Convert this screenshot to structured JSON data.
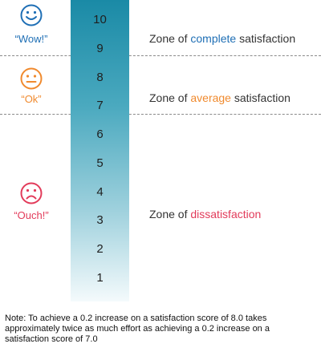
{
  "colors": {
    "complete": "#1f6fb5",
    "average": "#f08a2e",
    "dissatisfaction": "#e23b5a",
    "bar_top": "#1a8aa6",
    "bar_bottom": "#f4fafc"
  },
  "scale": {
    "ticks": [
      "10",
      "9",
      "8",
      "7",
      "6",
      "5",
      "4",
      "3",
      "2",
      "1"
    ]
  },
  "faces": {
    "happy": {
      "icon": "happy-face-icon",
      "label": "“Wow!”"
    },
    "neutral": {
      "icon": "neutral-face-icon",
      "label": "“Ok”"
    },
    "sad": {
      "icon": "sad-face-icon",
      "label": "“Ouch!”"
    }
  },
  "zones": {
    "complete": {
      "prefix": "Zone of ",
      "highlight": "complete",
      "suffix": " satisfaction"
    },
    "average": {
      "prefix": "Zone of ",
      "highlight": "average",
      "suffix": " satisfaction"
    },
    "dissatisfaction": {
      "prefix": "Zone of ",
      "highlight": "dissatisfaction",
      "suffix": ""
    }
  },
  "note": "Note: To achieve a 0.2 increase on a satisfaction score of 8.0 takes approximately twice as much effort as achieving a 0.2 increase on a satisfaction score of 7.0"
}
